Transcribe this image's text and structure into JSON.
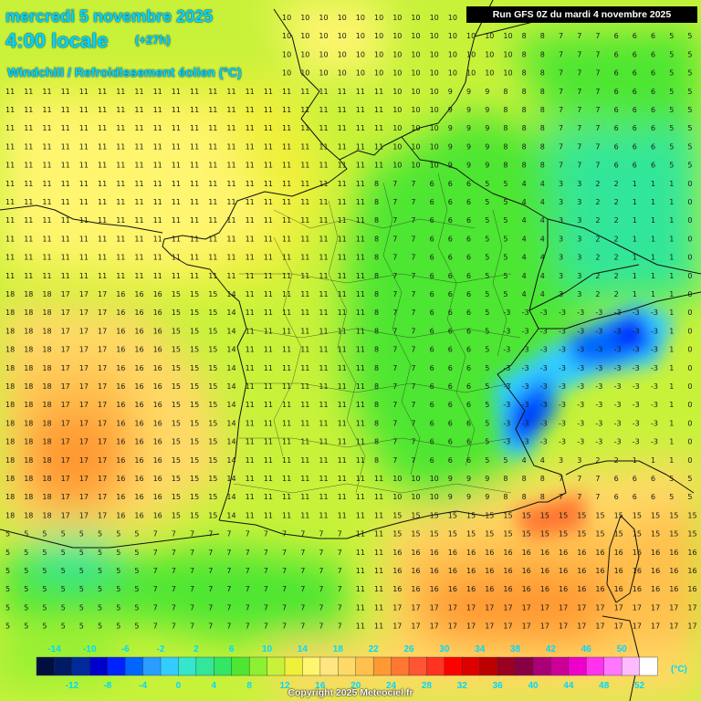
{
  "header": {
    "date": "mercredi 5 novembre 2025",
    "time": "4:00 locale",
    "offset": "(+27h)",
    "parameter": "Windchill / Refroidissement éolien (°C)"
  },
  "run_info": "Run GFS 0Z du mardi 4 novembre 2025",
  "copyright": "Copyright 2025 Meteociel.fr",
  "legend": {
    "unit": "(°C)",
    "top_labels": [
      "-14",
      "-10",
      "-6",
      "-2",
      "2",
      "6",
      "10",
      "14",
      "18",
      "22",
      "26",
      "30",
      "34",
      "38",
      "42",
      "46",
      "50"
    ],
    "bottom_labels": [
      "-12",
      "-8",
      "-4",
      "0",
      "4",
      "8",
      "12",
      "16",
      "20",
      "24",
      "28",
      "32",
      "36",
      "40",
      "44",
      "48",
      "52"
    ],
    "colors": [
      "#000f40",
      "#001a66",
      "#002a99",
      "#0000cc",
      "#0022ff",
      "#0066ff",
      "#2a9dff",
      "#33ccff",
      "#33e6cc",
      "#33e699",
      "#33e666",
      "#4ee633",
      "#8cf033",
      "#c8f23a",
      "#f0f03a",
      "#fff56e",
      "#ffe680",
      "#ffd966",
      "#ffc04d",
      "#ff9933",
      "#ff7733",
      "#ff5533",
      "#ff3322",
      "#ff0000",
      "#dd0000",
      "#bb0000",
      "#990022",
      "#880044",
      "#aa0077",
      "#cc0099",
      "#ee00cc",
      "#ff33ee",
      "#ff77ff",
      "#ffbbff",
      "#ffffff"
    ]
  }
}
